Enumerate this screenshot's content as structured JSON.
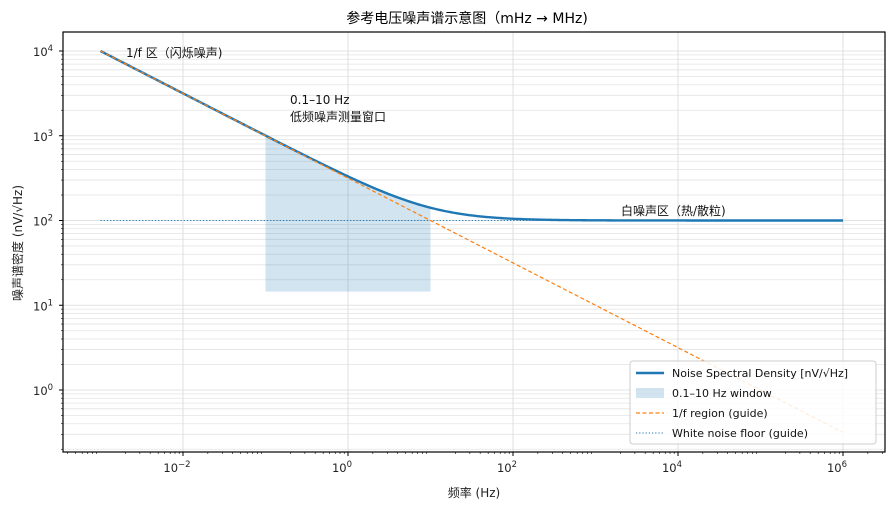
{
  "figure": {
    "title": "参考电压噪声谱示意图（mHz → MHz)",
    "xlabel": "频率 (Hz)",
    "ylabel": "噪声谱密度 (nV/√Hz)"
  },
  "annotations": {
    "flicker": "1/f 区（闪烁噪声)",
    "window_line1": "0.1–10 Hz",
    "window_line2": "低频噪声测量窗口",
    "white": "白噪声区（热/散粒)"
  },
  "legend": {
    "items": [
      {
        "label": "Noise Spectral Density  [nV/√Hz]",
        "style": "solid",
        "color": "#1f77b4"
      },
      {
        "label": "0.1–10 Hz window",
        "style": "patch",
        "color": "#1f77b4"
      },
      {
        "label": "1/f region (guide)",
        "style": "dashed",
        "color": "#ff7f0e"
      },
      {
        "label": "White noise floor (guide)",
        "style": "dotted",
        "color": "#1f77b4"
      }
    ]
  },
  "axes": {
    "x_ticks": [
      {
        "exp": -2,
        "base": "10",
        "sup": "−2"
      },
      {
        "exp": 0,
        "base": "10",
        "sup": "0"
      },
      {
        "exp": 2,
        "base": "10",
        "sup": "2"
      },
      {
        "exp": 4,
        "base": "10",
        "sup": "4"
      },
      {
        "exp": 6,
        "base": "10",
        "sup": "6"
      }
    ],
    "y_ticks": [
      {
        "exp": 0,
        "base": "10",
        "sup": "0"
      },
      {
        "exp": 1,
        "base": "10",
        "sup": "1"
      },
      {
        "exp": 2,
        "base": "10",
        "sup": "2"
      },
      {
        "exp": 3,
        "base": "10",
        "sup": "3"
      },
      {
        "exp": 4,
        "base": "10",
        "sup": "4"
      }
    ]
  },
  "chart_data": {
    "type": "line",
    "title": "参考电压噪声谱示意图（mHz → MHz)",
    "xlabel": "频率 (Hz)",
    "ylabel": "噪声谱密度 (nV/√Hz)",
    "xscale": "log",
    "yscale": "log",
    "xlim": [
      0.00025,
      3000000
    ],
    "ylim": [
      0.2,
      16000
    ],
    "grid": true,
    "legend_position": "lower right",
    "x": [
      0.001,
      0.01,
      0.1,
      1,
      10,
      100,
      1000,
      10000,
      100000,
      1000000
    ],
    "series": [
      {
        "name": "Noise Spectral Density  [nV/√Hz]",
        "style": "solid",
        "color": "#1f77b4",
        "values": [
          10000.5,
          3163.8,
          1004.9,
          331.6,
          141.4,
          104.9,
          100.5,
          100.05,
          100.005,
          100.0
        ]
      },
      {
        "name": "1/f region (guide)",
        "style": "dashed",
        "color": "#ff7f0e",
        "values": [
          10000,
          3162,
          1000,
          316.2,
          100,
          31.6,
          10,
          3.16,
          1.0,
          0.316
        ]
      },
      {
        "name": "White noise floor (guide)",
        "style": "dotted",
        "color": "#1f77b4",
        "values": [
          100,
          100,
          100,
          100,
          100,
          100,
          100,
          100,
          100,
          100
        ]
      }
    ],
    "shaded_regions": [
      {
        "name": "0.1–10 Hz window",
        "x_range": [
          0.1,
          10
        ],
        "y_bottom": 14.5,
        "y_top": "curve",
        "color": "#1f77b4",
        "alpha": 0.2
      }
    ],
    "annotations": [
      {
        "text": "1/f 区（闪烁噪声)",
        "x": 0.002,
        "y": 9000
      },
      {
        "text": "0.1–10 Hz\n低频噪声测量窗口",
        "x": 0.2,
        "y": 1500
      },
      {
        "text": "白噪声区（热/散粒)",
        "x": 2000,
        "y": 115
      }
    ]
  }
}
